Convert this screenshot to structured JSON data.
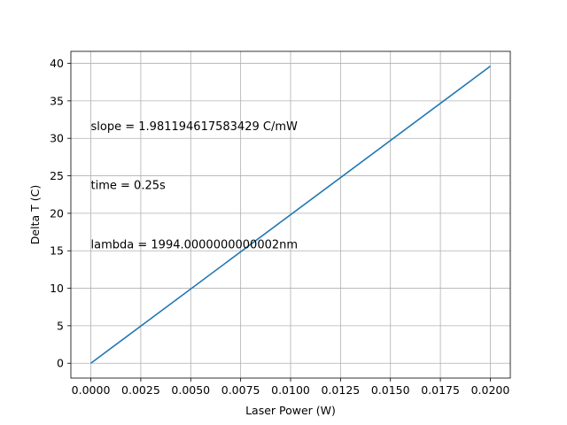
{
  "chart_data": {
    "type": "line",
    "title": "",
    "xlabel": "Laser Power (W)",
    "ylabel": "Delta T (C)",
    "xlim": [
      -0.001,
      0.021
    ],
    "ylim": [
      -1.98,
      41.6
    ],
    "grid": true,
    "xticks": [
      0.0,
      0.0025,
      0.005,
      0.0075,
      0.01,
      0.0125,
      0.015,
      0.0175,
      0.02
    ],
    "xtick_labels": [
      "0.0000",
      "0.0025",
      "0.0050",
      "0.0075",
      "0.0100",
      "0.0125",
      "0.0150",
      "0.0175",
      "0.0200"
    ],
    "yticks": [
      0,
      5,
      10,
      15,
      20,
      25,
      30,
      35,
      40
    ],
    "ytick_labels": [
      "0",
      "5",
      "10",
      "15",
      "20",
      "25",
      "30",
      "35",
      "40"
    ],
    "series": [
      {
        "color": "#1f77b4",
        "x": [
          0.0,
          0.02
        ],
        "y": [
          0.0,
          39.62
        ]
      }
    ],
    "annotations": [
      {
        "text": "slope = 1.981194617583429 C/mW",
        "x": 0.0,
        "y": 31.7
      },
      {
        "text": "time = 0.25s",
        "x": 0.0,
        "y": 23.8
      },
      {
        "text": "lambda = 1994.0000000000002nm",
        "x": 0.0,
        "y": 15.9
      }
    ]
  }
}
